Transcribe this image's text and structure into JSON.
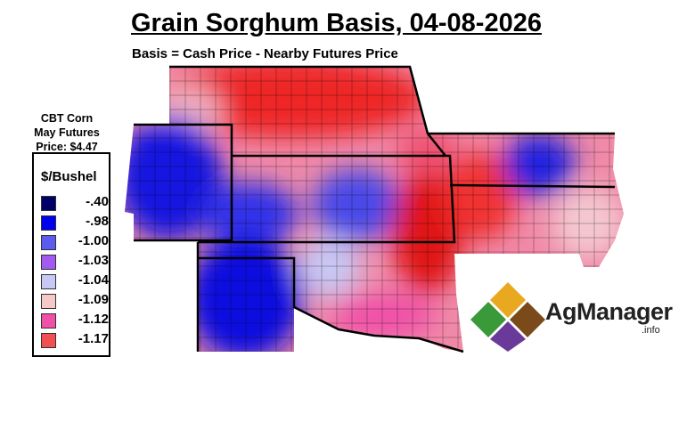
{
  "title": "Grain Sorghum Basis, 04-08-2026",
  "subtitle": "Basis = Cash Price - Nearby Futures Price",
  "futures": {
    "line1": "CBT Corn",
    "line2": "May Futures",
    "line3": "Price: $4.47"
  },
  "legend": {
    "title": "$/Bushel",
    "items": [
      {
        "label": "-.40",
        "color": "#000066"
      },
      {
        "label": "-.98",
        "color": "#0000ee"
      },
      {
        "label": "-1.00",
        "color": "#5b5bf0"
      },
      {
        "label": "-1.03",
        "color": "#a35af0"
      },
      {
        "label": "-1.04",
        "color": "#c8c8f4"
      },
      {
        "label": "-1.09",
        "color": "#f6c8c8"
      },
      {
        "label": "-1.12",
        "color": "#f050a8"
      },
      {
        "label": "-1.17",
        "color": "#f05050"
      }
    ]
  },
  "logo": {
    "name": "AgManager",
    "suffix": ".info"
  }
}
